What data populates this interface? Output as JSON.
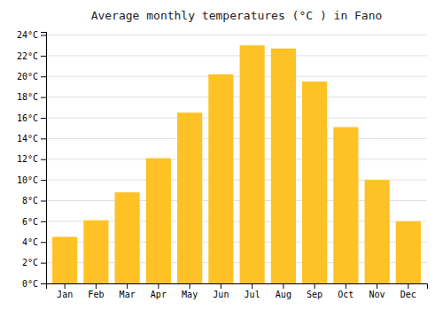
{
  "chart_data": {
    "type": "bar",
    "title": "Average monthly temperatures (°C ) in Fano",
    "categories": [
      "Jan",
      "Feb",
      "Mar",
      "Apr",
      "May",
      "Jun",
      "Jul",
      "Aug",
      "Sep",
      "Oct",
      "Nov",
      "Dec"
    ],
    "values": [
      4.5,
      6.1,
      8.8,
      12.1,
      16.5,
      20.2,
      23.0,
      22.7,
      19.5,
      15.1,
      10.0,
      6.0
    ],
    "color": "#FFC226",
    "ylim": [
      0,
      24.3
    ],
    "yticks": [
      {
        "value": 0,
        "label": "0°C"
      },
      {
        "value": 2,
        "label": "2°C"
      },
      {
        "value": 4,
        "label": "4°C"
      },
      {
        "value": 6,
        "label": "6°C"
      },
      {
        "value": 8,
        "label": "8°C"
      },
      {
        "value": 10,
        "label": "10°C"
      },
      {
        "value": 12,
        "label": "12°C"
      },
      {
        "value": 14,
        "label": "14°C"
      },
      {
        "value": 16,
        "label": "16°C"
      },
      {
        "value": 18,
        "label": "18°C"
      },
      {
        "value": 20,
        "label": "20°C"
      },
      {
        "value": 22,
        "label": "22°C"
      },
      {
        "value": 24,
        "label": "24°C"
      }
    ],
    "grid": true
  }
}
